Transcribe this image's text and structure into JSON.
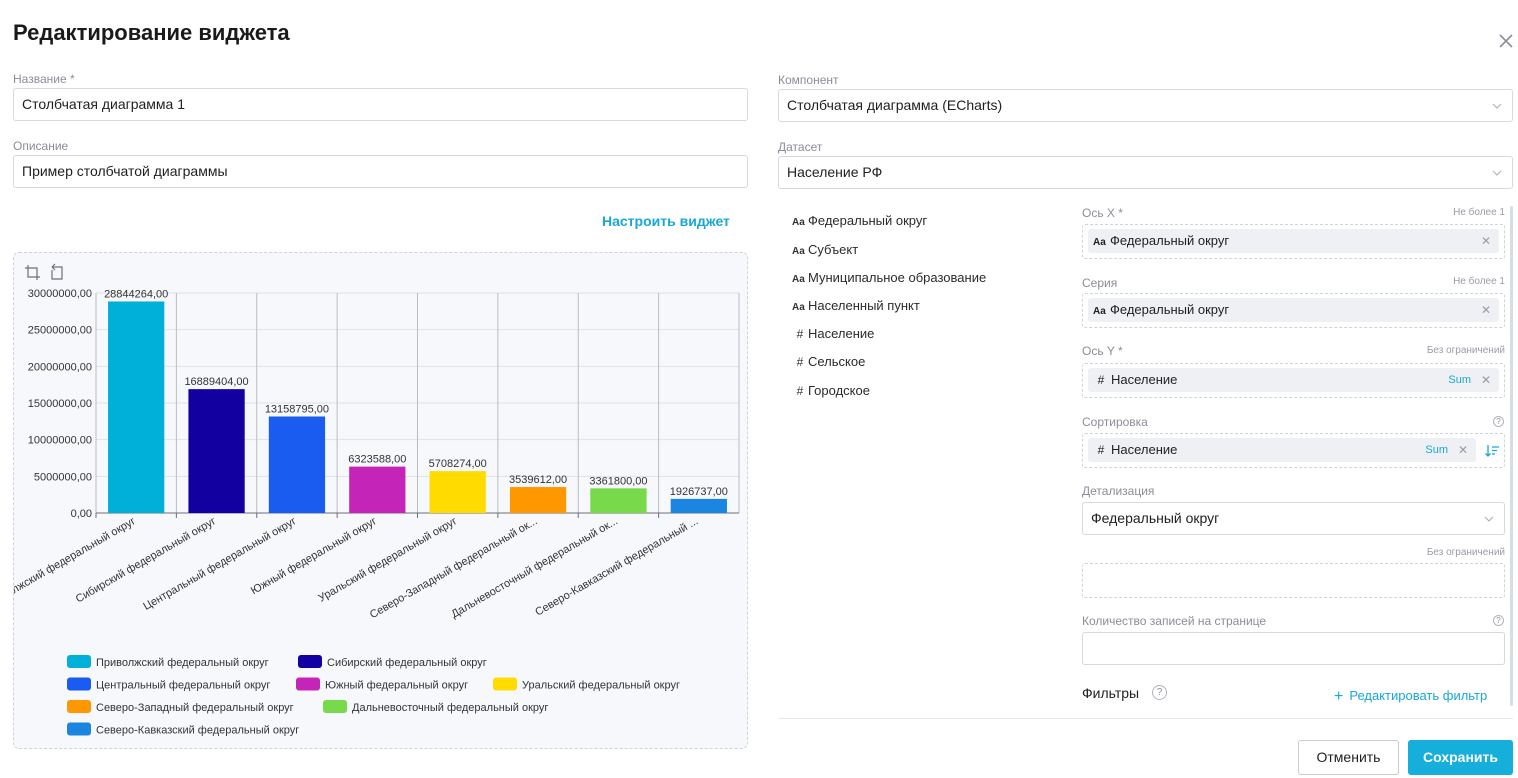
{
  "dialog": {
    "title": "Редактирование виджета",
    "configure_link": "Настроить виджет"
  },
  "form": {
    "name_label": "Название *",
    "name_value": "Столбчатая диаграмма 1",
    "description_label": "Описание",
    "description_value": "Пример столбчатой диаграммы",
    "component_label": "Компонент",
    "component_value": "Столбчатая диаграмма (ECharts)",
    "dataset_label": "Датасет",
    "dataset_value": "Население РФ"
  },
  "fields": [
    {
      "icon": "Aa",
      "type": "text-field-icon",
      "label": "Федеральный округ"
    },
    {
      "icon": "Aa",
      "type": "text-field-icon",
      "label": "Субъект"
    },
    {
      "icon": "Aa",
      "type": "text-field-icon",
      "label": "Муниципальное образование"
    },
    {
      "icon": "Aa",
      "type": "text-field-icon",
      "label": "Населенный пункт"
    },
    {
      "icon": "#",
      "type": "number-field-icon",
      "label": "Население"
    },
    {
      "icon": "#",
      "type": "number-field-icon",
      "label": "Сельское"
    },
    {
      "icon": "#",
      "type": "number-field-icon",
      "label": "Городское"
    }
  ],
  "settings": {
    "x_axis": {
      "label": "Ось X *",
      "limit": "Не более 1",
      "chip_icon": "Aa",
      "chip": "Федеральный округ"
    },
    "series": {
      "label": "Серия",
      "limit": "Не более 1",
      "chip_icon": "Aa",
      "chip": "Федеральный округ"
    },
    "y_axis": {
      "label": "Ось Y *",
      "limit": "Без ограничений",
      "chip_icon": "#",
      "chip": "Население",
      "agg": "Sum"
    },
    "sorting": {
      "label": "Сортировка",
      "chip_icon": "#",
      "chip": "Население",
      "agg": "Sum"
    },
    "detail": {
      "label": "Детализация",
      "value": "Федеральный округ",
      "limit": "Без ограничений"
    },
    "page_size": {
      "label": "Количество записей на странице",
      "value": ""
    },
    "filters": {
      "label": "Фильтры",
      "edit_label": "Редактировать фильтр"
    },
    "help_mark": "?"
  },
  "buttons": {
    "cancel": "Отменить",
    "save": "Сохранить"
  },
  "chart_data": {
    "type": "bar",
    "categories": [
      "Приволжский федеральный округ",
      "Сибирский федеральный округ",
      "Центральный федеральный округ",
      "Южный федеральный округ",
      "Уральский федеральный округ",
      "Северо-Западный федеральный округ",
      "Дальневосточный федеральный округ",
      "Северо-Кавказский федеральный округ"
    ],
    "category_tick_labels": [
      "Приволжский федеральный округ",
      "Сибирский федеральный округ",
      "Центральный федеральный округ",
      "Южный федеральный округ",
      "Уральский федеральный округ",
      "Северо-Западный федеральный ок...",
      "Дальневосточный федеральный ок...",
      "Северо-Кавказский федеральный ..."
    ],
    "values": [
      28844264,
      16889404,
      13158795,
      6323588,
      5708274,
      3539612,
      3361800,
      1926737
    ],
    "data_labels": [
      "28844264,00",
      "16889404,00",
      "13158795,00",
      "6323588,00",
      "5708274,00",
      "3539612,00",
      "3361800,00",
      "1926737,00"
    ],
    "colors": [
      "#00b0d8",
      "#1200a0",
      "#1a5bf0",
      "#c424b8",
      "#ffdb00",
      "#ff9800",
      "#78d94a",
      "#1a86e0"
    ],
    "y_ticks": [
      "0,00",
      "5000000,00",
      "10000000,00",
      "15000000,00",
      "20000000,00",
      "25000000,00",
      "30000000,00"
    ],
    "ylim": [
      0,
      30000000
    ],
    "grid": true,
    "legend_position": "bottom",
    "toolbox": [
      "zoom-icon",
      "zoom-reset-icon"
    ]
  }
}
